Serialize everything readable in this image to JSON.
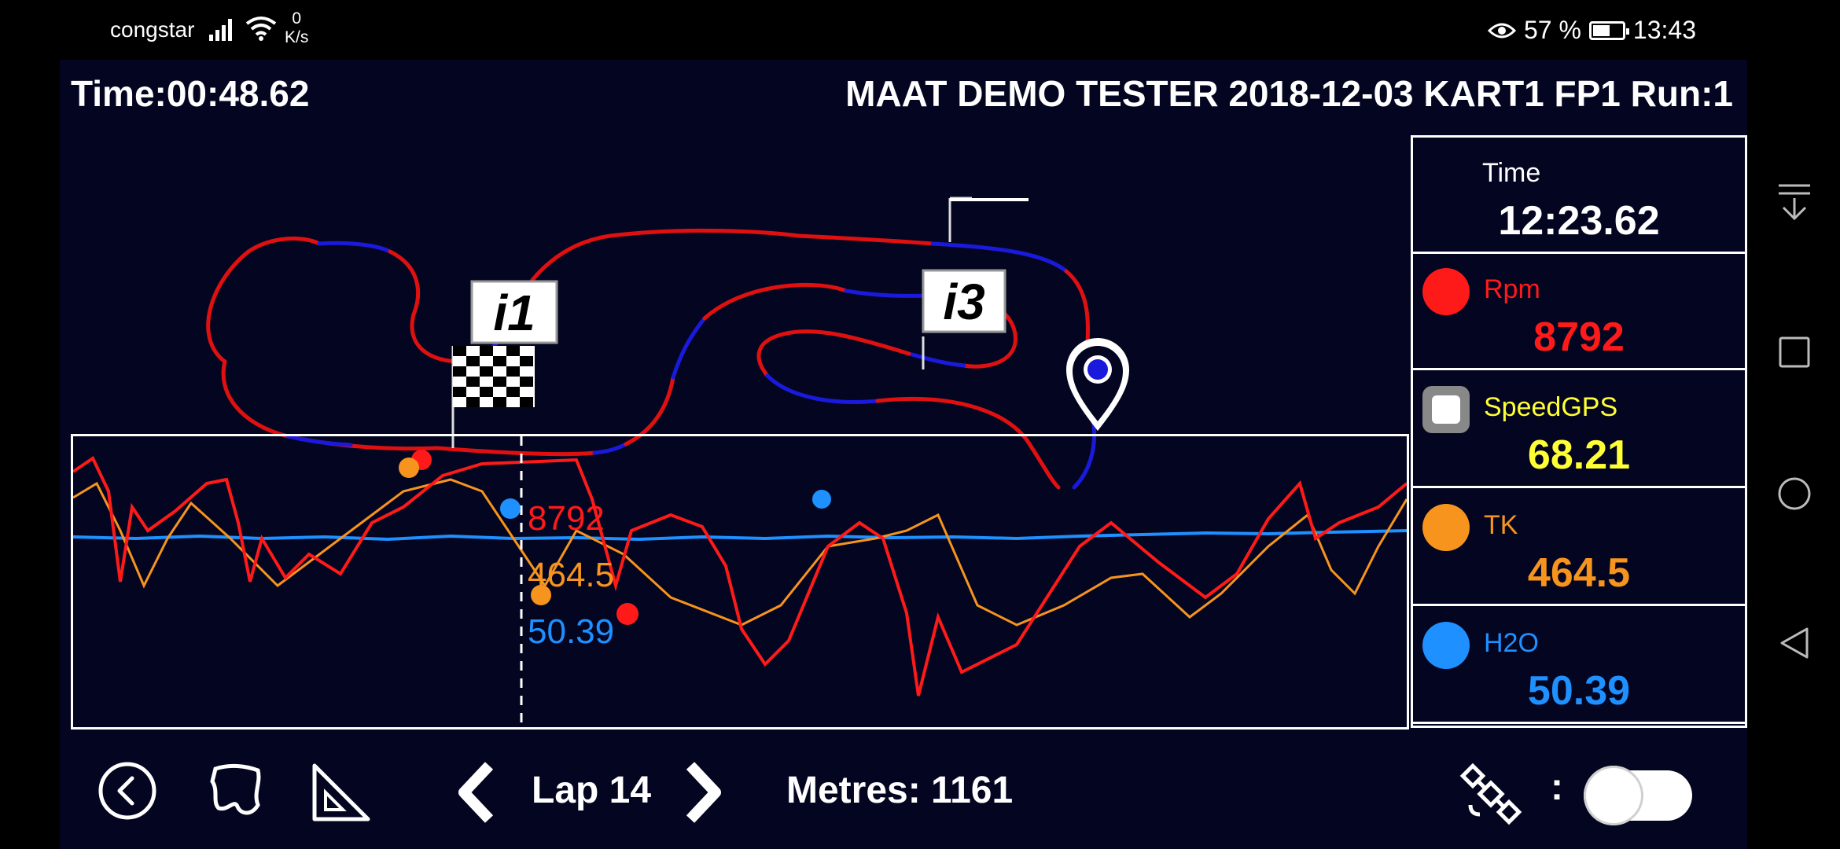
{
  "status_bar": {
    "carrier": "congstar",
    "net_speed_value": "0",
    "net_speed_unit": "K/s",
    "battery_percent_text": "57 %",
    "battery_level": 0.57,
    "clock": "13:43"
  },
  "header": {
    "time_label": "Time:00:48.62",
    "session_title": "MAAT DEMO TESTER 2018-12-03 KART1 FP1 Run:1"
  },
  "track_map": {
    "flag_i1": "i1",
    "flag_i3": "i3"
  },
  "channels": [
    {
      "name": "Time",
      "value": "12:23.62",
      "color": "#ffffff"
    },
    {
      "name": "Rpm",
      "value": "8792",
      "color": "#ff1a1a"
    },
    {
      "name": "SpeedGPS",
      "value": "68.21",
      "color": "#ffff33"
    },
    {
      "name": "TK",
      "value": "464.5",
      "color": "#f7941d"
    },
    {
      "name": "H2O",
      "value": "50.39",
      "color": "#1e90ff"
    }
  ],
  "chart_readouts": {
    "rpm": "8792",
    "tk": "464.5",
    "h2o": "50.39"
  },
  "toolbar": {
    "lap_label": "Lap 14",
    "metres_label": "Metres: 1161",
    "gps_separator": ":",
    "back_icon": "back-circle-icon",
    "track_icon": "track-outline-icon",
    "measure_icon": "set-square-icon",
    "satellite_icon": "satellite-icon"
  },
  "colors": {
    "background": "#040621",
    "rpm": "#ff1a1a",
    "tk": "#f7941d",
    "h2o": "#1e90ff",
    "speed": "#ffff33",
    "track_red": "#e01010",
    "track_blue": "#1a1adc"
  }
}
